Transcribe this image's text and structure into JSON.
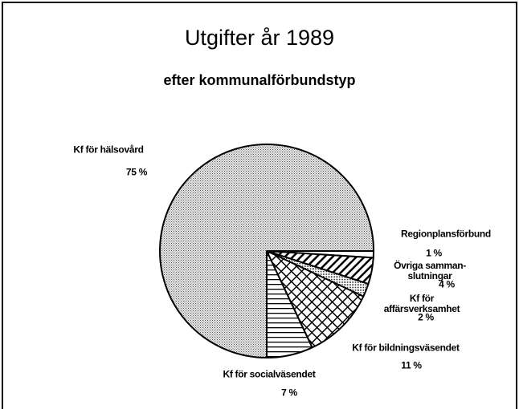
{
  "chart_data": {
    "type": "pie",
    "title": "Utgifter år 1989",
    "subtitle": "efter kommunalförbundstyp",
    "categories": [
      "Regionplansförbund",
      "Övriga samman-\nslutningar",
      "Kf för affärsverksamhet",
      "Kf för bildningsväsendet",
      "Kf för socialväsendet",
      "Kf för hälsovård"
    ],
    "values": [
      1,
      4,
      2,
      11,
      7,
      75
    ],
    "value_labels": [
      "1 %",
      "4 %",
      "2 %",
      "11 %",
      "7 %",
      "75 %"
    ]
  }
}
